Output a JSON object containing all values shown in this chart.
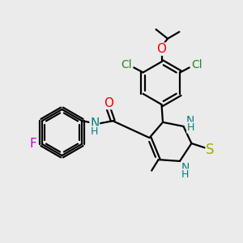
{
  "bg_color": "#ebebeb",
  "bond_color": "#000000",
  "atom_colors": {
    "F": "#cc00cc",
    "O": "#ff0000",
    "N": "#008080",
    "S": "#aaaa00",
    "Cl": "#228822",
    "C": "#000000",
    "H": "#008080"
  },
  "lw": 1.6,
  "fs": 11,
  "fs_small": 9
}
